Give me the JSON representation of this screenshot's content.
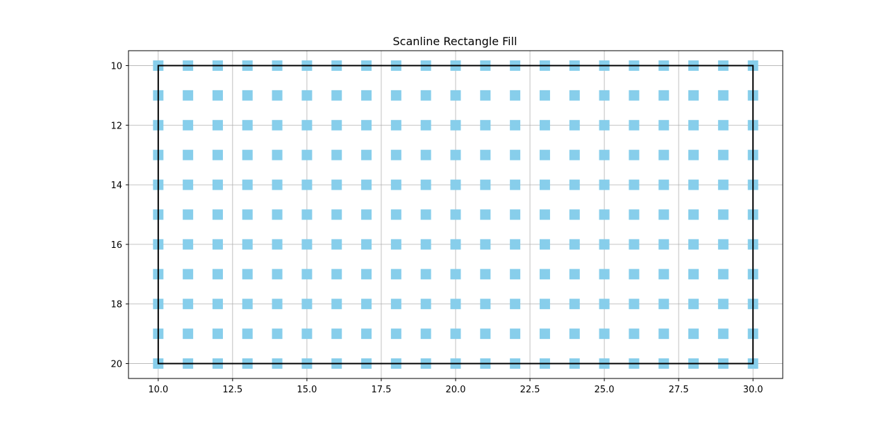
{
  "chart_data": {
    "type": "scatter",
    "title": "Scanline Rectangle Fill",
    "xlabel": "",
    "ylabel": "",
    "xlim": [
      9,
      31
    ],
    "ylim": [
      20.5,
      9.5
    ],
    "y_inverted": true,
    "grid": true,
    "x_ticks": [
      "10.0",
      "12.5",
      "15.0",
      "17.5",
      "20.0",
      "22.5",
      "25.0",
      "27.5",
      "30.0"
    ],
    "y_ticks": [
      "10",
      "12",
      "14",
      "16",
      "18",
      "20"
    ],
    "points": {
      "x_range": [
        10,
        30
      ],
      "y_range": [
        10,
        20
      ],
      "step": 1,
      "marker": "square",
      "color": "#87ceeb"
    },
    "rectangle": {
      "x": [
        10,
        30
      ],
      "y": [
        10,
        20
      ],
      "color": "#000000"
    }
  }
}
